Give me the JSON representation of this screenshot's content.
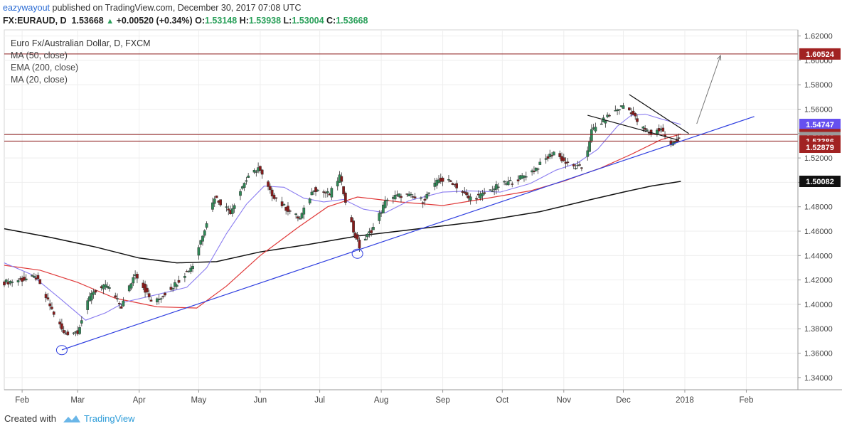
{
  "header": {
    "user": "eazywayout",
    "published_text": "published on TradingView.com, December 30, 2017 07:08 UTC",
    "symbol": "FX:EURAUD, D",
    "last": "1.53668",
    "change": "+0.00520 (+0.34%)",
    "o_label": "O:",
    "o_value": "1.53148",
    "h_label": "H:",
    "h_value": "1.53938",
    "l_label": "L:",
    "l_value": "1.53004",
    "c_label": "C:",
    "c_value": "1.53668"
  },
  "legend": {
    "title": "Euro Fx/Australian Dollar, D, FXCM",
    "items": [
      "MA (50, close)",
      "EMA (200, close)",
      "MA (20, close)"
    ]
  },
  "footer": {
    "created_with": "Created with",
    "brand": "TradingView"
  },
  "colors": {
    "up": "#2e8b57",
    "down": "#8b1a1a",
    "wick": "#333333",
    "ma50": "#e03a3a",
    "ema200": "#111111",
    "ma20": "#8a7cf0",
    "trend": "#2f3fe0",
    "hline": "#8b1a1a",
    "label_red": "#a12222",
    "label_purple": "#6650f0",
    "label_dark": "#111111",
    "label_gray": "#9a9a9a"
  },
  "chart_data": {
    "type": "candlestick",
    "title": "Euro Fx/Australian Dollar, D, FXCM",
    "ylim": [
      1.33,
      1.625
    ],
    "x_range": [
      "2017-01-23",
      "2018-02-27"
    ],
    "x_ticks": [
      {
        "date": "2017-02-01",
        "label": "Feb"
      },
      {
        "date": "2017-03-01",
        "label": "Mar"
      },
      {
        "date": "2017-04-01",
        "label": "Apr"
      },
      {
        "date": "2017-05-01",
        "label": "May"
      },
      {
        "date": "2017-06-01",
        "label": "Jun"
      },
      {
        "date": "2017-07-01",
        "label": "Jul"
      },
      {
        "date": "2017-08-01",
        "label": "Aug"
      },
      {
        "date": "2017-09-01",
        "label": "Sep"
      },
      {
        "date": "2017-10-01",
        "label": "Oct"
      },
      {
        "date": "2017-11-01",
        "label": "Nov"
      },
      {
        "date": "2017-12-01",
        "label": "Dec"
      },
      {
        "date": "2018-01-01",
        "label": "2018"
      },
      {
        "date": "2018-02-01",
        "label": "Feb"
      }
    ],
    "y_ticks": [
      1.34,
      1.36,
      1.38,
      1.4,
      1.42,
      1.44,
      1.46,
      1.48,
      1.5,
      1.52,
      1.54,
      1.56,
      1.58,
      1.6,
      1.62
    ],
    "y_tick_labels": [
      "1.34000",
      "1.36000",
      "1.38000",
      "1.40000",
      "1.42000",
      "1.44000",
      "1.46000",
      "1.48000",
      "1.50000",
      "1.52000",
      "1.54000",
      "1.56000",
      "1.58000",
      "1.60000",
      "1.62000"
    ],
    "price_labels": [
      {
        "value": 1.60524,
        "text": "1.60524",
        "color": "#a12222"
      },
      {
        "value": 1.54747,
        "text": "1.54747",
        "color": "#6650f0"
      },
      {
        "value": 1.53918,
        "text": "1.53918",
        "color": "#a12222"
      },
      {
        "value": 1.53668,
        "text": "1.53668",
        "color": "#9a9a9a"
      },
      {
        "value": 1.53386,
        "text": "1.53386",
        "color": "#a12222"
      },
      {
        "value": 1.52879,
        "text": "1.52879",
        "color": "#a12222"
      },
      {
        "value": 1.50082,
        "text": "1.50082",
        "color": "#111111"
      }
    ],
    "horizontal_lines": [
      1.60524,
      1.53918,
      1.53386
    ],
    "close_anchors": [
      [
        "2017-01-23",
        1.418
      ],
      [
        "2017-02-08",
        1.422
      ],
      [
        "2017-02-22",
        1.376
      ],
      [
        "2017-03-01",
        1.378
      ],
      [
        "2017-03-08",
        1.41
      ],
      [
        "2017-03-16",
        1.415
      ],
      [
        "2017-03-23",
        1.398
      ],
      [
        "2017-03-30",
        1.426
      ],
      [
        "2017-04-08",
        1.4
      ],
      [
        "2017-04-20",
        1.418
      ],
      [
        "2017-04-28",
        1.432
      ],
      [
        "2017-05-09",
        1.488
      ],
      [
        "2017-05-17",
        1.476
      ],
      [
        "2017-05-24",
        1.5
      ],
      [
        "2017-05-31",
        1.512
      ],
      [
        "2017-06-06",
        1.492
      ],
      [
        "2017-06-13",
        1.48
      ],
      [
        "2017-06-21",
        1.47
      ],
      [
        "2017-06-28",
        1.495
      ],
      [
        "2017-07-06",
        1.49
      ],
      [
        "2017-07-11",
        1.505
      ],
      [
        "2017-07-18",
        1.46
      ],
      [
        "2017-07-21",
        1.447
      ],
      [
        "2017-07-28",
        1.463
      ],
      [
        "2017-08-04",
        1.487
      ],
      [
        "2017-08-13",
        1.49
      ],
      [
        "2017-08-22",
        1.485
      ],
      [
        "2017-08-30",
        1.502
      ],
      [
        "2017-09-06",
        1.5
      ],
      [
        "2017-09-14",
        1.487
      ],
      [
        "2017-09-20",
        1.489
      ],
      [
        "2017-09-29",
        1.497
      ],
      [
        "2017-10-08",
        1.502
      ],
      [
        "2017-10-17",
        1.51
      ],
      [
        "2017-10-27",
        1.525
      ],
      [
        "2017-11-04",
        1.513
      ],
      [
        "2017-11-11",
        1.512
      ],
      [
        "2017-11-15",
        1.542
      ],
      [
        "2017-11-24",
        1.555
      ],
      [
        "2017-12-01",
        1.563
      ],
      [
        "2017-12-05",
        1.558
      ],
      [
        "2017-12-10",
        1.545
      ],
      [
        "2017-12-15",
        1.54
      ],
      [
        "2017-12-20",
        1.544
      ],
      [
        "2017-12-25",
        1.53
      ],
      [
        "2017-12-29",
        1.5367
      ]
    ],
    "ma20": [
      [
        "2017-01-23",
        1.434
      ],
      [
        "2017-02-05",
        1.425
      ],
      [
        "2017-02-20",
        1.405
      ],
      [
        "2017-03-05",
        1.387
      ],
      [
        "2017-03-15",
        1.393
      ],
      [
        "2017-03-25",
        1.402
      ],
      [
        "2017-04-10",
        1.408
      ],
      [
        "2017-04-25",
        1.414
      ],
      [
        "2017-05-05",
        1.43
      ],
      [
        "2017-05-15",
        1.458
      ],
      [
        "2017-05-25",
        1.482
      ],
      [
        "2017-06-03",
        1.497
      ],
      [
        "2017-06-13",
        1.496
      ],
      [
        "2017-06-23",
        1.487
      ],
      [
        "2017-07-03",
        1.484
      ],
      [
        "2017-07-13",
        1.486
      ],
      [
        "2017-07-23",
        1.478
      ],
      [
        "2017-08-03",
        1.475
      ],
      [
        "2017-08-15",
        1.485
      ],
      [
        "2017-09-01",
        1.492
      ],
      [
        "2017-09-15",
        1.493
      ],
      [
        "2017-09-30",
        1.492
      ],
      [
        "2017-10-15",
        1.499
      ],
      [
        "2017-10-28",
        1.51
      ],
      [
        "2017-11-08",
        1.516
      ],
      [
        "2017-11-18",
        1.527
      ],
      [
        "2017-11-28",
        1.546
      ],
      [
        "2017-12-05",
        1.555
      ],
      [
        "2017-12-12",
        1.556
      ],
      [
        "2017-12-20",
        1.552
      ],
      [
        "2017-12-30",
        1.5475
      ]
    ],
    "ma50": [
      [
        "2017-01-23",
        1.432
      ],
      [
        "2017-02-10",
        1.428
      ],
      [
        "2017-03-01",
        1.418
      ],
      [
        "2017-03-20",
        1.405
      ],
      [
        "2017-04-10",
        1.398
      ],
      [
        "2017-04-30",
        1.397
      ],
      [
        "2017-05-15",
        1.415
      ],
      [
        "2017-06-01",
        1.44
      ],
      [
        "2017-06-20",
        1.463
      ],
      [
        "2017-07-05",
        1.48
      ],
      [
        "2017-07-20",
        1.488
      ],
      [
        "2017-08-10",
        1.484
      ],
      [
        "2017-09-01",
        1.481
      ],
      [
        "2017-09-20",
        1.486
      ],
      [
        "2017-10-15",
        1.493
      ],
      [
        "2017-11-01",
        1.501
      ],
      [
        "2017-11-20",
        1.512
      ],
      [
        "2017-12-05",
        1.523
      ],
      [
        "2017-12-20",
        1.535
      ],
      [
        "2017-12-30",
        1.5396
      ]
    ],
    "ema200": [
      [
        "2017-01-23",
        1.462
      ],
      [
        "2017-02-15",
        1.455
      ],
      [
        "2017-03-10",
        1.447
      ],
      [
        "2017-04-01",
        1.438
      ],
      [
        "2017-04-20",
        1.434
      ],
      [
        "2017-05-10",
        1.435
      ],
      [
        "2017-06-01",
        1.443
      ],
      [
        "2017-06-25",
        1.449
      ],
      [
        "2017-07-20",
        1.456
      ],
      [
        "2017-08-20",
        1.462
      ],
      [
        "2017-09-20",
        1.468
      ],
      [
        "2017-10-20",
        1.476
      ],
      [
        "2017-11-15",
        1.486
      ],
      [
        "2017-12-01",
        1.492
      ],
      [
        "2017-12-15",
        1.497
      ],
      [
        "2017-12-30",
        1.5008
      ]
    ],
    "trendline": {
      "p1": [
        "2017-02-21",
        1.3627
      ],
      "p2": [
        "2018-02-05",
        1.554
      ]
    },
    "wedge_upper": {
      "p1": [
        "2017-12-04",
        1.572
      ],
      "p2": [
        "2018-01-03",
        1.54
      ]
    },
    "wedge_lower": {
      "p1": [
        "2017-11-13",
        1.555
      ],
      "p2": [
        "2017-12-29",
        1.5345
      ]
    },
    "projection_arrow": {
      "p1": [
        "2018-01-07",
        1.548
      ],
      "p2": [
        "2018-01-19",
        1.604
      ]
    },
    "circles": [
      [
        "2017-02-21",
        1.3625
      ],
      [
        "2017-07-20",
        1.4415
      ]
    ]
  }
}
